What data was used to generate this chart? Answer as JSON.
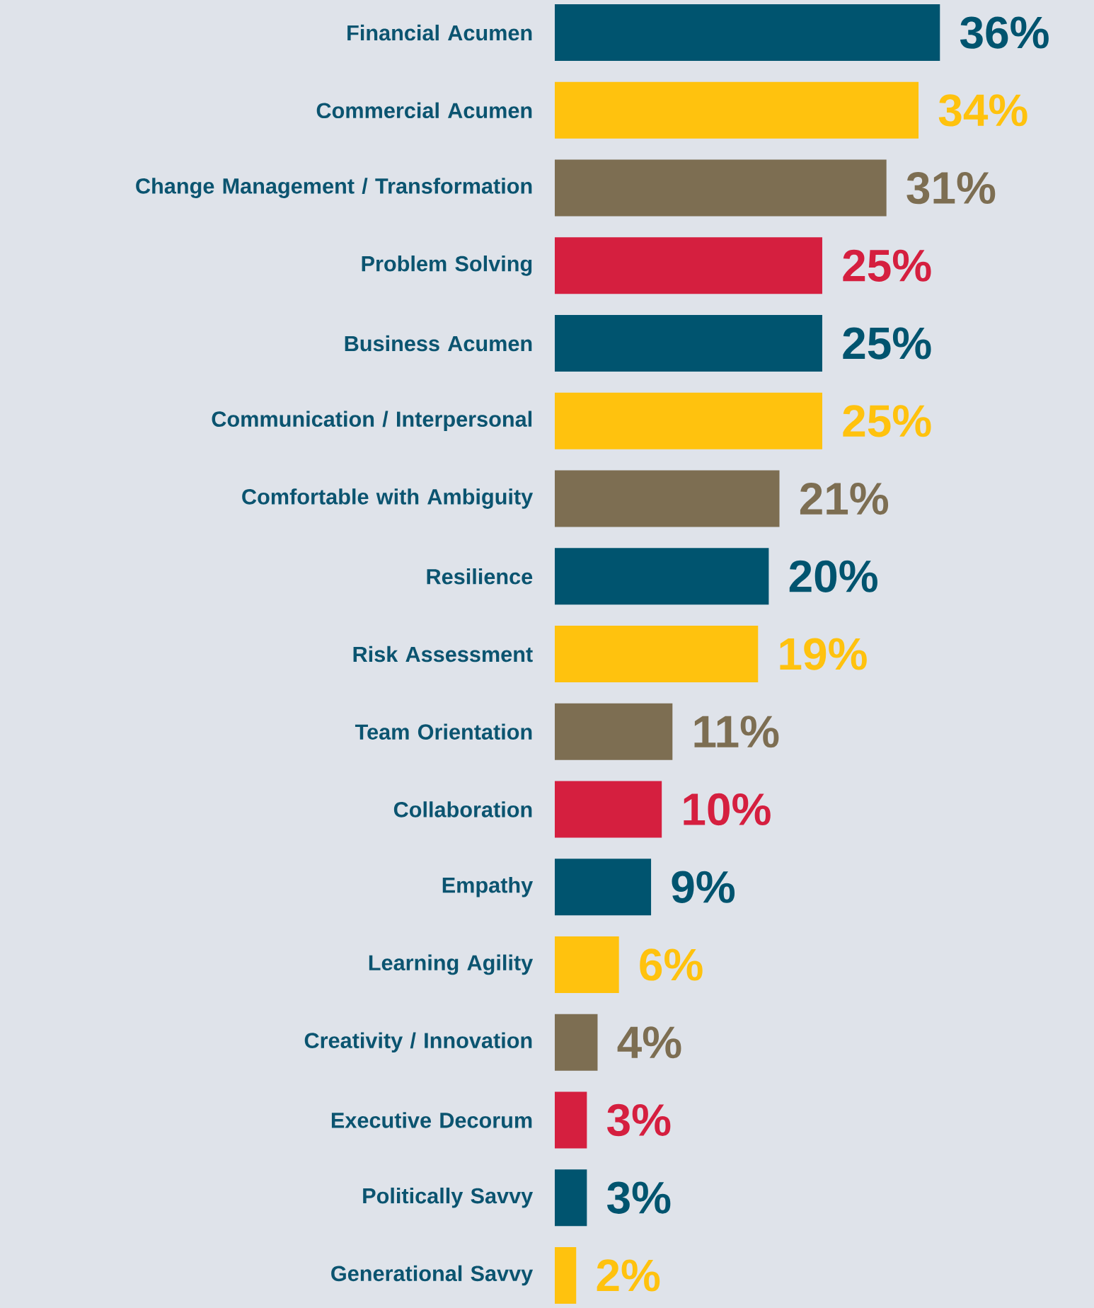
{
  "chart_data": {
    "type": "bar",
    "orientation": "horizontal",
    "categories": [
      "Financial Acumen",
      "Commercial Acumen",
      "Change Management / Transformation",
      "Problem Solving",
      "Business Acumen",
      "Communication / Interpersonal",
      "Comfortable with Ambiguity",
      "Resilience",
      "Risk Assessment",
      "Team Orientation",
      "Collaboration",
      "Empathy",
      "Learning Agility",
      "Creativity / Innovation",
      "Executive Decorum",
      "Politically Savvy",
      "Generational Savvy"
    ],
    "values": [
      36,
      34,
      31,
      25,
      25,
      25,
      21,
      20,
      19,
      11,
      10,
      9,
      6,
      4,
      3,
      3,
      2
    ],
    "colors": [
      "#00546f",
      "#ffc20e",
      "#7d6e52",
      "#d51f3f",
      "#00546f",
      "#ffc20e",
      "#7d6e52",
      "#00546f",
      "#ffc20e",
      "#7d6e52",
      "#d51f3f",
      "#00546f",
      "#ffc20e",
      "#7d6e52",
      "#d51f3f",
      "#00546f",
      "#ffc20e"
    ],
    "value_labels": [
      "36%",
      "34%",
      "31%",
      "25%",
      "25%",
      "25%",
      "21%",
      "20%",
      "19%",
      "11%",
      "10%",
      "9%",
      "6%",
      "4%",
      "3%",
      "3%",
      "2%"
    ]
  }
}
